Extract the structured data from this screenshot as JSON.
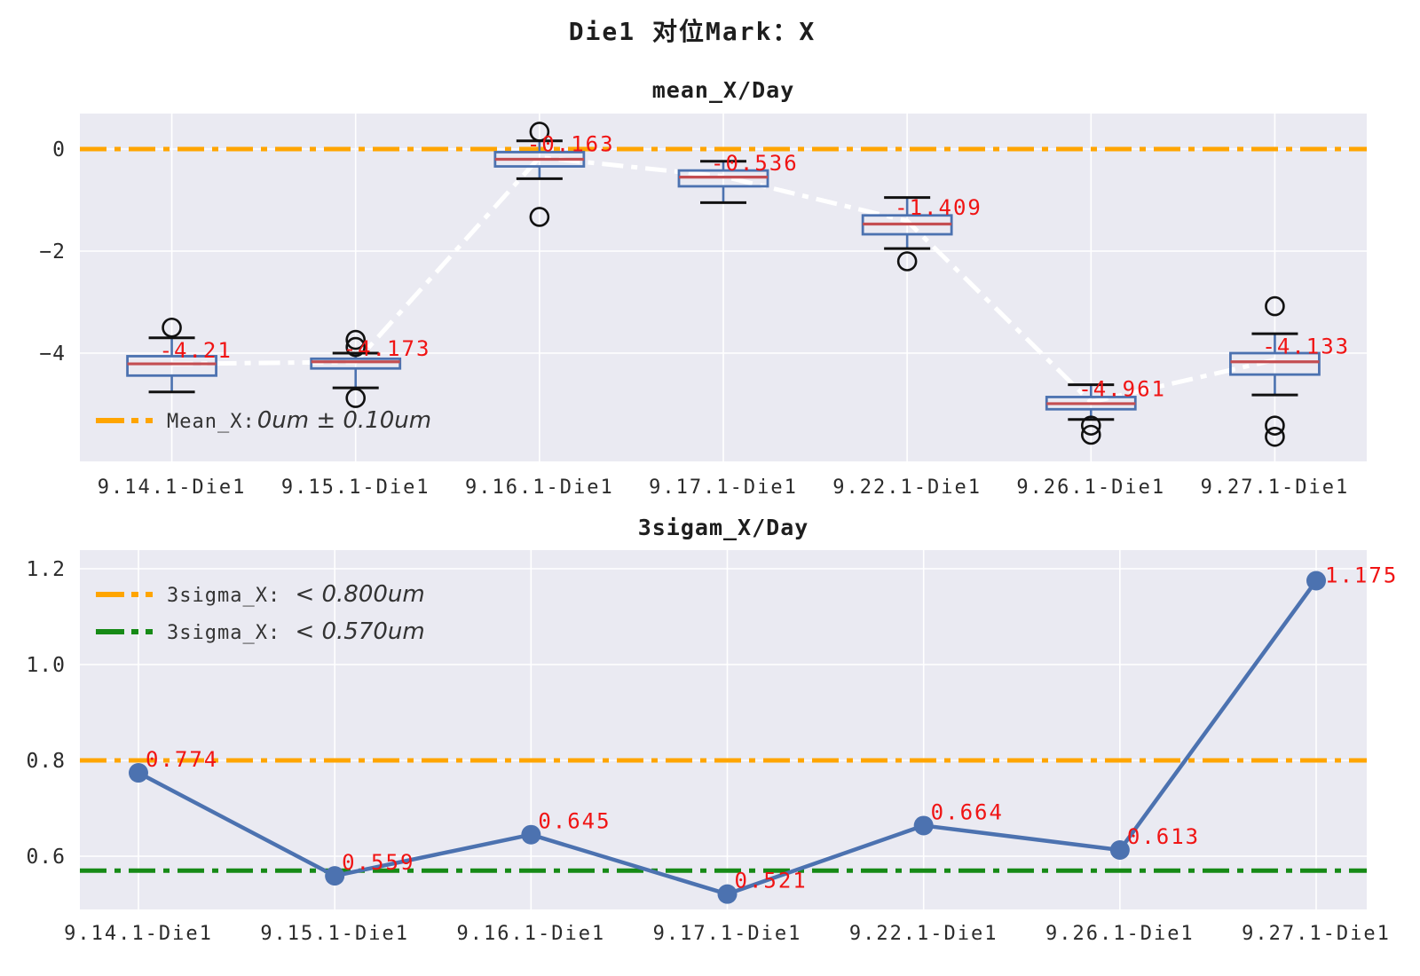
{
  "figure": {
    "title": "Die1 对位Mark：X"
  },
  "colors": {
    "axes_bg": "#EAEAF2",
    "grid": "#FFFFFF",
    "orange_limit": "#FFA500",
    "green_limit": "#168a16",
    "series_blue": "#4C72B0",
    "box_edge": "#4C72B0",
    "median_red": "#C44E52",
    "whisker_blue": "#4C72B0",
    "cap_black": "#111111",
    "outlier_black": "#111111",
    "mean_line_white": "#FFFFFF",
    "value_label_red": "#F01414",
    "tick_text": "#2b2b2b"
  },
  "chart_data": [
    {
      "id": "mean_x_per_day",
      "type": "boxplot",
      "title": "mean_X/Day",
      "categories": [
        "9.14.1-Die1",
        "9.15.1-Die1",
        "9.16.1-Die1",
        "9.17.1-Die1",
        "9.22.1-Die1",
        "9.26.1-Die1",
        "9.27.1-Die1"
      ],
      "means": [
        -4.21,
        -4.173,
        -0.163,
        -0.536,
        -1.409,
        -4.961,
        -4.133
      ],
      "mean_labels": [
        "-4.21",
        "-4.173",
        "-0.163",
        "-0.536",
        "-1.409",
        "-4.961",
        "-4.133"
      ],
      "boxes": [
        {
          "whisker_high": -3.7,
          "q3": -4.06,
          "median": -4.21,
          "q1": -4.44,
          "whisker_low": -4.76,
          "outliers": [
            -3.5
          ]
        },
        {
          "whisker_high": -4.0,
          "q3": -4.11,
          "median": -4.17,
          "q1": -4.3,
          "whisker_low": -4.68,
          "outliers": [
            -3.74,
            -3.88,
            -4.88
          ]
        },
        {
          "whisker_high": 0.16,
          "q3": -0.06,
          "median": -0.2,
          "q1": -0.34,
          "whisker_low": -0.58,
          "outliers": [
            0.34,
            -1.33
          ]
        },
        {
          "whisker_high": -0.24,
          "q3": -0.42,
          "median": -0.55,
          "q1": -0.73,
          "whisker_low": -1.05,
          "outliers": []
        },
        {
          "whisker_high": -0.95,
          "q3": -1.3,
          "median": -1.47,
          "q1": -1.67,
          "whisker_low": -1.95,
          "outliers": [
            -2.2
          ]
        },
        {
          "whisker_high": -4.62,
          "q3": -4.86,
          "median": -4.99,
          "q1": -5.1,
          "whisker_low": -5.3,
          "outliers": [
            -5.42,
            -5.6
          ]
        },
        {
          "whisker_high": -3.62,
          "q3": -4.0,
          "median": -4.17,
          "q1": -4.42,
          "whisker_low": -4.82,
          "outliers": [
            -3.08,
            -5.42,
            -5.64
          ]
        }
      ],
      "yticks": {
        "values": [
          0,
          -2,
          -4
        ],
        "labels": [
          "0",
          "−2",
          "−4"
        ]
      },
      "ylim": [
        -6.12,
        0.7
      ],
      "grid": true,
      "ref_lines": [
        {
          "value": 0,
          "color": "#FFA500",
          "style": "dashdot"
        }
      ],
      "legend": [
        {
          "color": "#FFA500",
          "prefix": "Mean_X:",
          "math": "0um ± 0.10um"
        }
      ]
    },
    {
      "id": "3sigma_x_per_day",
      "type": "line",
      "title": "3sigam_X/Day",
      "categories": [
        "9.14.1-Die1",
        "9.15.1-Die1",
        "9.16.1-Die1",
        "9.17.1-Die1",
        "9.22.1-Die1",
        "9.26.1-Die1",
        "9.27.1-Die1"
      ],
      "values": [
        0.774,
        0.559,
        0.645,
        0.521,
        0.664,
        0.613,
        1.175
      ],
      "value_labels": [
        "0.774",
        "0.559",
        "0.645",
        "0.521",
        "0.664",
        "0.613",
        "1.175"
      ],
      "yticks": {
        "values": [
          1.2,
          1.0,
          0.8,
          0.6
        ],
        "labels": [
          "1.2",
          "1.0",
          "0.8",
          "0.6"
        ]
      },
      "ylim": [
        0.49,
        1.24
      ],
      "grid": true,
      "ref_lines": [
        {
          "value": 0.8,
          "color": "#FFA500",
          "style": "dashdot"
        },
        {
          "value": 0.57,
          "color": "#168a16",
          "style": "dashdot"
        }
      ],
      "legend": [
        {
          "color": "#FFA500",
          "prefix": "3sigma_X: ",
          "math": "< 0.800um"
        },
        {
          "color": "#168a16",
          "prefix": "3sigma_X: ",
          "math": "< 0.570um"
        }
      ]
    }
  ]
}
